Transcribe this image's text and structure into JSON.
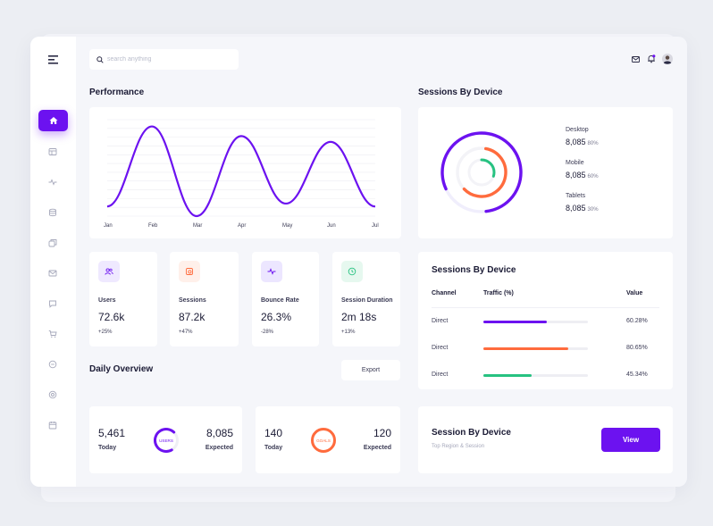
{
  "search": {
    "placeholder": "search anything"
  },
  "performance": {
    "title": "Performance",
    "months": [
      "Jan",
      "Feb",
      "Mar",
      "Apr",
      "May",
      "Jun",
      "Jul"
    ]
  },
  "chart_data": {
    "type": "line",
    "title": "Performance",
    "x": [
      "Jan",
      "Feb",
      "Mar",
      "Apr",
      "May",
      "Jun",
      "Jul"
    ],
    "series": [
      {
        "values": [
          0.1,
          0.93,
          0.0,
          0.83,
          0.13,
          0.77,
          0.1
        ]
      }
    ],
    "ylim": [
      0,
      1
    ],
    "grid": true,
    "color": "#6c12f0"
  },
  "stats": [
    {
      "label": "Users",
      "value": "72.6k",
      "change": "+25%",
      "icon": "users-icon",
      "color": "#6c12f0",
      "bg": "#efe9ff"
    },
    {
      "label": "Sessions",
      "value": "87.2k",
      "change": "+47%",
      "icon": "sessions-icon",
      "color": "#ff6b3d",
      "bg": "#fff0ea"
    },
    {
      "label": "Bounce Rate",
      "value": "26.3%",
      "change": "-28%",
      "icon": "activity-icon",
      "color": "#6c12f0",
      "bg": "#ece6ff"
    },
    {
      "label": "Session Duration",
      "value": "2m 18s",
      "change": "+13%",
      "icon": "clock-icon",
      "color": "#27c281",
      "bg": "#e6f8ef"
    }
  ],
  "devices": {
    "title": "Sessions By Device",
    "items": [
      {
        "name": "Desktop",
        "value": "8,085",
        "percent": "80%",
        "pct": 80,
        "color": "#6c12f0"
      },
      {
        "name": "Mobile",
        "value": "8,085",
        "percent": "60%",
        "pct": 60,
        "color": "#ff6b3d"
      },
      {
        "name": "Tablets",
        "value": "8,085",
        "percent": "30%",
        "pct": 30,
        "color": "#27c281"
      }
    ]
  },
  "traffic": {
    "title": "Sessions By Device",
    "columns": [
      "Channel",
      "Traffic (%)",
      "Value"
    ],
    "rows": [
      {
        "channel": "Direct",
        "value": "60.28%",
        "fill": 0.61,
        "color": "#6c12f0"
      },
      {
        "channel": "Direct",
        "value": "80.65%",
        "fill": 0.81,
        "color": "#ff6b3d"
      },
      {
        "channel": "Direct",
        "value": "45.34%",
        "fill": 0.46,
        "color": "#27c281"
      }
    ]
  },
  "overview": {
    "title": "Daily Overview",
    "export_label": "Export",
    "users": {
      "today_value": "5,461",
      "today_label": "Today",
      "ring_label": "USERS",
      "expected_value": "8,085",
      "expected_label": "Expected",
      "color": "#6c12f0"
    },
    "goals": {
      "today_value": "140",
      "today_label": "Today",
      "ring_label": "GOALS",
      "expected_value": "120",
      "expected_label": "Expected",
      "color": "#ff6b3d"
    }
  },
  "session_card": {
    "title": "Session By Device",
    "subtitle": "Top Region & Session",
    "button_label": "View"
  }
}
